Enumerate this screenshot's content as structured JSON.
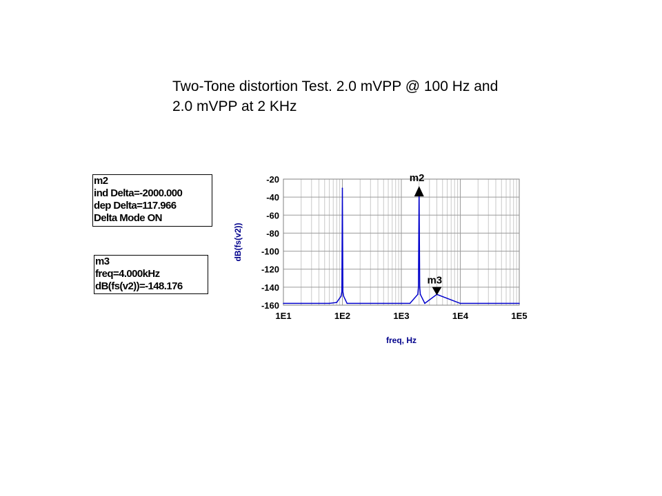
{
  "title_lines": [
    "Two-Tone distortion Test. 2.0 mVPP  @ 100 Hz and",
    "2.0 mVPP at 2 KHz"
  ],
  "marker_boxes": {
    "m2": [
      "m2",
      "ind Delta=-2000.000",
      "dep Delta=117.966",
      "Delta Mode ON"
    ],
    "m3": [
      "m3",
      "freq=4.000kHz",
      "dB(fs(v2))=-148.176"
    ]
  },
  "colors": {
    "trace": "#0000cc",
    "axis_label": "#00008b",
    "grid": "#c8c8c8"
  },
  "chart_data": {
    "type": "line",
    "title": "",
    "xlabel": "freq, Hz",
    "ylabel": "dB(fs(v2))",
    "x_scale": "log",
    "xlim": [
      10,
      100000
    ],
    "ylim": [
      -160,
      -20
    ],
    "grid": true,
    "x_ticks": [
      10,
      100,
      1000,
      10000,
      100000
    ],
    "x_tick_labels": [
      "1E1",
      "1E2",
      "1E3",
      "1E4",
      "1E5"
    ],
    "y_ticks": [
      -20,
      -40,
      -60,
      -80,
      -100,
      -120,
      -140,
      -160
    ],
    "y_tick_labels": [
      "-20",
      "-40",
      "-60",
      "-80",
      "-100",
      "-120",
      "-140",
      "-160"
    ],
    "series": [
      {
        "x": [
          10,
          20,
          40,
          60,
          80,
          95,
          98,
          100,
          102,
          105,
          120,
          200,
          500,
          1000,
          1400,
          1900,
          1950,
          2000,
          2050,
          2100,
          2500,
          4000,
          10000,
          30000,
          100000
        ],
        "y": [
          -158,
          -158,
          -158,
          -158,
          -157,
          -150,
          -145,
          -30,
          -145,
          -150,
          -158,
          -158,
          -158,
          -158,
          -158,
          -148,
          -140,
          -30,
          -140,
          -148,
          -158,
          -148,
          -158,
          -158,
          -158
        ]
      }
    ],
    "markers": [
      {
        "name": "m2",
        "x": 2000,
        "y": -30,
        "direction": "up"
      },
      {
        "name": "m3",
        "x": 4000,
        "y": -148.176,
        "direction": "down"
      }
    ]
  }
}
